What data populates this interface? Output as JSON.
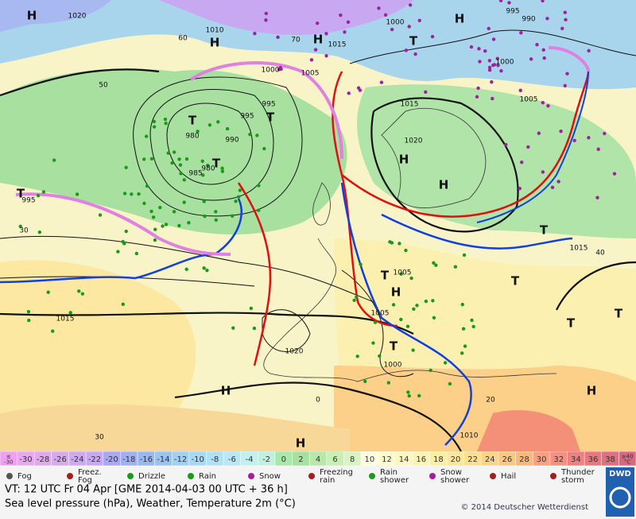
{
  "map": {
    "labels": [
      "H",
      "1020",
      "1010",
      "H",
      "1000",
      "1005",
      "H",
      "1015",
      "T",
      "1000",
      "H",
      "995",
      "990",
      "1000",
      "1005",
      "995",
      "T",
      "995",
      "T",
      "980",
      "990",
      "985",
      "980",
      "T",
      "1015",
      "1020",
      "H",
      "H",
      "T",
      "995",
      "T",
      "1015",
      "1005",
      "T",
      "H",
      "T",
      "1005",
      "1015",
      "T",
      "T",
      "1020",
      "T",
      "1000",
      "H",
      "H",
      "1010",
      "H",
      "60",
      "50",
      "70",
      "30",
      "40",
      "20",
      "0",
      "30"
    ],
    "scale": [
      {
        "label": "≤\n-30",
        "color": "#f0a0f0"
      },
      {
        "label": "-30",
        "color": "#e8a8f0"
      },
      {
        "label": "-28",
        "color": "#e0a8f0"
      },
      {
        "label": "-26",
        "color": "#d8a8f0"
      },
      {
        "label": "-24",
        "color": "#d0a8f0"
      },
      {
        "label": "-22",
        "color": "#c8a8f4"
      },
      {
        "label": "-20",
        "color": "#a8a8f4"
      },
      {
        "label": "-18",
        "color": "#a0b0f4"
      },
      {
        "label": "-16",
        "color": "#98b8f4"
      },
      {
        "label": "-14",
        "color": "#98c4f4"
      },
      {
        "label": "-12",
        "color": "#a0d0f4"
      },
      {
        "label": "-10",
        "color": "#a8d8f4"
      },
      {
        "label": "-8",
        "color": "#b0e0f4"
      },
      {
        "label": "-6",
        "color": "#b8e8f4"
      },
      {
        "label": "-4",
        "color": "#c0f0f0"
      },
      {
        "label": "-2",
        "color": "#c0f0e0"
      },
      {
        "label": "0",
        "color": "#a8e8a8"
      },
      {
        "label": "2",
        "color": "#a8e0a0"
      },
      {
        "label": "4",
        "color": "#b8e8a8"
      },
      {
        "label": "6",
        "color": "#c8f0b0"
      },
      {
        "label": "8",
        "color": "#d8f4c0"
      },
      {
        "label": "10",
        "color": "#fcfce0"
      },
      {
        "label": "12",
        "color": "#fcfcd0"
      },
      {
        "label": "14",
        "color": "#fcf8c0"
      },
      {
        "label": "16",
        "color": "#fcf4b0"
      },
      {
        "label": "18",
        "color": "#fcf0a0"
      },
      {
        "label": "20",
        "color": "#fce898"
      },
      {
        "label": "22",
        "color": "#fce090"
      },
      {
        "label": "24",
        "color": "#fcd488"
      },
      {
        "label": "26",
        "color": "#fcc880"
      },
      {
        "label": "28",
        "color": "#fcb878"
      },
      {
        "label": "30",
        "color": "#fca080"
      },
      {
        "label": "32",
        "color": "#f89080"
      },
      {
        "label": "34",
        "color": "#f08080"
      },
      {
        "label": "36",
        "color": "#e87880"
      },
      {
        "label": "38",
        "color": "#e07080"
      },
      {
        "label": "≥40\n°C",
        "color": "#d86880"
      }
    ],
    "legend": [
      "Fog",
      "Freez.\nFog",
      "Drizzle",
      "Rain",
      "Snow",
      "Freezing\nrain",
      "Rain\nshower",
      "Snow\nshower",
      "Hail",
      "Thunder\nstorm"
    ],
    "footer": {
      "valid_time": "VT: 12 UTC Fr   04 Apr [GME 2014-04-03  00 UTC + 36 h]",
      "description": "Sea level pressure (hPa), Weather, Temperature 2m (°C)",
      "copyright": "© 2014 Deutscher Wetterdienst",
      "logo": "DWD"
    }
  }
}
